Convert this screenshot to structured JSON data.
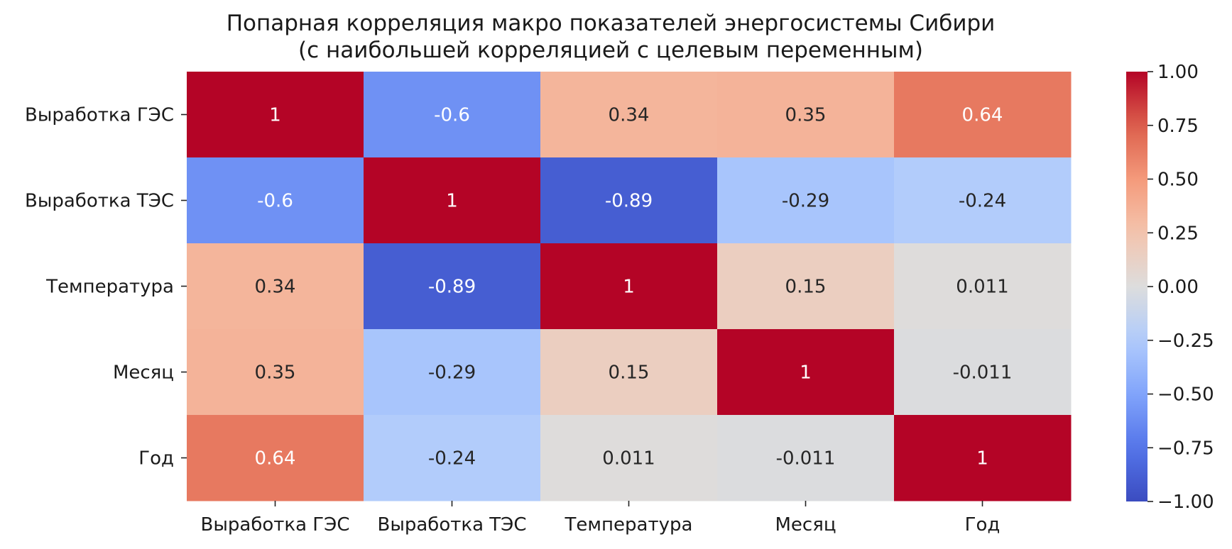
{
  "chart_data": {
    "type": "heatmap",
    "title": "Попарная корреляция макро показателей энергосистемы Сибири",
    "subtitle": "(с наибольшей корреляцией с целевым переменным)",
    "rows": [
      "Выработка ГЭС",
      "Выработка ТЭС",
      "Температура",
      "Месяц",
      "Год"
    ],
    "columns": [
      "Выработка ГЭС",
      "Выработка ТЭС",
      "Температура",
      "Месяц",
      "Год"
    ],
    "values": [
      [
        1,
        -0.6,
        0.34,
        0.35,
        0.64
      ],
      [
        -0.6,
        1,
        -0.89,
        -0.29,
        -0.24
      ],
      [
        0.34,
        -0.89,
        1,
        0.15,
        0.011
      ],
      [
        0.35,
        -0.29,
        0.15,
        1,
        -0.011
      ],
      [
        0.64,
        -0.24,
        0.011,
        -0.011,
        1
      ]
    ],
    "cell_labels": [
      [
        "1",
        "-0.6",
        "0.34",
        "0.35",
        "0.64"
      ],
      [
        "-0.6",
        "1",
        "-0.89",
        "-0.29",
        "-0.24"
      ],
      [
        "0.34",
        "-0.89",
        "1",
        "0.15",
        "0.011"
      ],
      [
        "0.35",
        "-0.29",
        "0.15",
        "1",
        "-0.011"
      ],
      [
        "0.64",
        "-0.24",
        "0.011",
        "-0.011",
        "1"
      ]
    ],
    "colormap": "coolwarm",
    "vmin": -1,
    "vmax": 1,
    "colorbar_ticks": [
      "1.00",
      "0.75",
      "0.50",
      "0.25",
      "0.00",
      "−0.25",
      "−0.50",
      "−0.75",
      "−1.00"
    ],
    "colorbar_tick_values": [
      1,
      0.75,
      0.5,
      0.25,
      0,
      -0.25,
      -0.5,
      -0.75,
      -1
    ],
    "grid": false
  }
}
